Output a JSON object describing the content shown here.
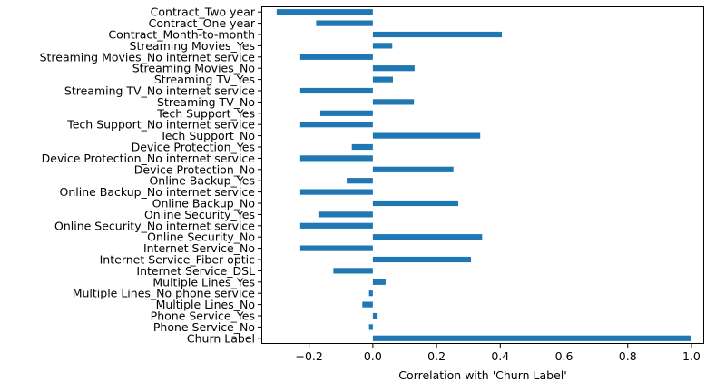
{
  "chart_data": {
    "type": "bar",
    "orientation": "horizontal",
    "xlabel": "Correlation with 'Churn Label'",
    "xlim": [
      -0.35,
      1.04
    ],
    "xticks": [
      -0.2,
      0.0,
      0.2,
      0.4,
      0.6,
      0.8,
      1.0
    ],
    "xtick_labels": [
      "−0.2",
      "0.0",
      "0.2",
      "0.4",
      "0.6",
      "0.8",
      "1.0"
    ],
    "grid": false,
    "bar_color": "#1f77b4",
    "categories": [
      "Churn Label",
      "Phone Service_No",
      "Phone Service_Yes",
      "Multiple Lines_No",
      "Multiple Lines_No phone service",
      "Multiple Lines_Yes",
      "Internet Service_DSL",
      "Internet Service_Fiber optic",
      "Internet Service_No",
      "Online Security_No",
      "Online Security_No internet service",
      "Online Security_Yes",
      "Online Backup_No",
      "Online Backup_No internet service",
      "Online Backup_Yes",
      "Device Protection_No",
      "Device Protection_No internet service",
      "Device Protection_Yes",
      "Tech Support_No",
      "Tech Support_No internet service",
      "Tech Support_Yes",
      "Streaming TV_No",
      "Streaming TV_No internet service",
      "Streaming TV_Yes",
      "Streaming Movies_No",
      "Streaming Movies_No internet service",
      "Streaming Movies_Yes",
      "Contract_Month-to-month",
      "Contract_One year",
      "Contract_Two year"
    ],
    "values": [
      1.0,
      -0.012,
      0.012,
      -0.033,
      -0.012,
      0.04,
      -0.124,
      0.308,
      -0.228,
      0.343,
      -0.228,
      -0.171,
      0.268,
      -0.228,
      -0.082,
      0.253,
      -0.228,
      -0.066,
      0.337,
      -0.228,
      -0.165,
      0.129,
      -0.228,
      0.063,
      0.131,
      -0.228,
      0.061,
      0.405,
      -0.178,
      -0.302
    ]
  }
}
